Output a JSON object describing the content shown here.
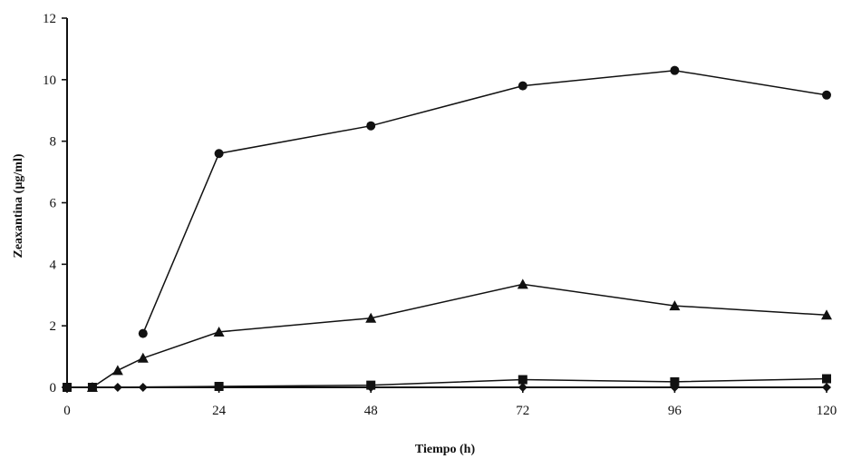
{
  "chart_data": {
    "type": "line",
    "title": "",
    "xlabel": "Tiempo (h)",
    "ylabel": "Zeaxantina (µg/ml)",
    "xlim": [
      0,
      120
    ],
    "ylim": [
      0,
      12
    ],
    "x_ticks": [
      0,
      24,
      48,
      72,
      96,
      120
    ],
    "y_ticks": [
      0,
      2,
      4,
      6,
      8,
      10,
      12
    ],
    "grid": false,
    "legend": "none",
    "series": [
      {
        "marker": "circle",
        "points": [
          [
            12,
            1.75
          ],
          [
            24,
            7.6
          ],
          [
            48,
            8.5
          ],
          [
            72,
            9.8
          ],
          [
            96,
            10.3
          ],
          [
            120,
            9.5
          ]
        ]
      },
      {
        "marker": "triangle",
        "points": [
          [
            4,
            0
          ],
          [
            8,
            0.55
          ],
          [
            12,
            0.95
          ],
          [
            24,
            1.8
          ],
          [
            48,
            2.25
          ],
          [
            72,
            3.35
          ],
          [
            96,
            2.65
          ],
          [
            120,
            2.35
          ]
        ]
      },
      {
        "marker": "square",
        "points": [
          [
            0,
            0
          ],
          [
            4,
            0
          ],
          [
            24,
            0.03
          ],
          [
            48,
            0.07
          ],
          [
            72,
            0.25
          ],
          [
            96,
            0.18
          ],
          [
            120,
            0.28
          ]
        ]
      },
      {
        "marker": "diamond",
        "points": [
          [
            0,
            0
          ],
          [
            4,
            0
          ],
          [
            8,
            0
          ],
          [
            12,
            0
          ],
          [
            24,
            0
          ],
          [
            48,
            0
          ],
          [
            72,
            0
          ],
          [
            96,
            0
          ],
          [
            120,
            0
          ]
        ]
      }
    ]
  }
}
